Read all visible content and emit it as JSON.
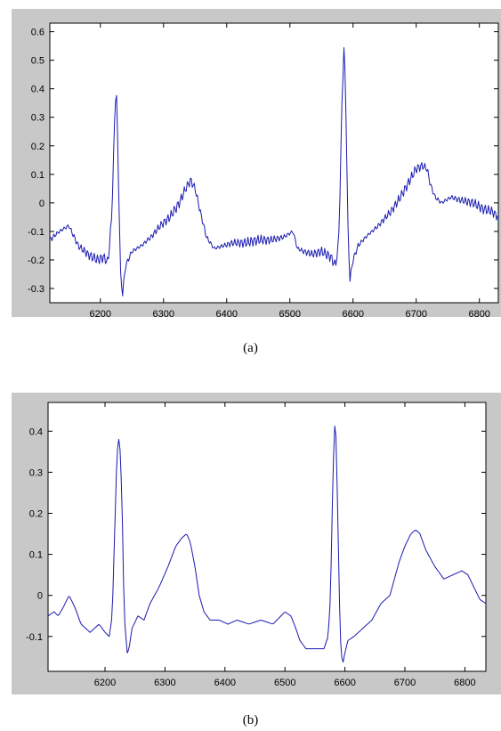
{
  "chart_data": [
    {
      "type": "line",
      "panel_caption": "(a)",
      "xlim": [
        6120,
        6830
      ],
      "ylim": [
        -0.35,
        0.63
      ],
      "x_ticks": [
        6200,
        6300,
        6400,
        6500,
        6600,
        6700,
        6800
      ],
      "y_ticks": [
        -0.3,
        -0.2,
        -0.1,
        0,
        0.1,
        0.2,
        0.3,
        0.4,
        0.5,
        0.6
      ],
      "y_tick_labels": [
        "-0.3",
        "-0.2",
        "-0.1",
        "0",
        "0.1",
        "0.2",
        "0.3",
        "0.4",
        "0.5",
        "0.6"
      ],
      "grid": false,
      "line_color": "#1a1ab0",
      "noise": 0.018,
      "series": [
        {
          "x": [
            6120,
            6135,
            6150,
            6165,
            6180,
            6195,
            6205,
            6212,
            6218,
            6222,
            6225,
            6228,
            6232,
            6235,
            6240,
            6250,
            6265,
            6280,
            6295,
            6310,
            6325,
            6335,
            6343,
            6350,
            6358,
            6368,
            6380,
            6395,
            6410,
            6430,
            6450,
            6470,
            6490,
            6505,
            6512,
            6522,
            6535,
            6550,
            6565,
            6572,
            6577,
            6580,
            6583,
            6586,
            6589,
            6592,
            6595,
            6600,
            6608,
            6620,
            6640,
            6660,
            6675,
            6690,
            6700,
            6710,
            6717,
            6723,
            6730,
            6740,
            6755,
            6770,
            6790,
            6805,
            6820,
            6830
          ],
          "y": [
            -0.13,
            -0.1,
            -0.08,
            -0.15,
            -0.18,
            -0.2,
            -0.19,
            -0.21,
            -0.05,
            0.25,
            0.43,
            0.15,
            -0.25,
            -0.32,
            -0.22,
            -0.17,
            -0.15,
            -0.12,
            -0.08,
            -0.05,
            0.0,
            0.05,
            0.08,
            0.05,
            -0.03,
            -0.12,
            -0.16,
            -0.15,
            -0.14,
            -0.14,
            -0.13,
            -0.13,
            -0.12,
            -0.1,
            -0.16,
            -0.17,
            -0.18,
            -0.17,
            -0.19,
            -0.22,
            -0.15,
            0.1,
            0.4,
            0.56,
            0.3,
            -0.1,
            -0.27,
            -0.2,
            -0.15,
            -0.12,
            -0.08,
            -0.03,
            0.02,
            0.08,
            0.12,
            0.13,
            0.12,
            0.06,
            0.02,
            0.0,
            0.02,
            0.01,
            0.0,
            -0.02,
            -0.03,
            -0.05
          ]
        }
      ]
    },
    {
      "type": "line",
      "panel_caption": "(b)",
      "xlim": [
        6105,
        6835
      ],
      "ylim": [
        -0.185,
        0.47
      ],
      "x_ticks": [
        6200,
        6300,
        6400,
        6500,
        6600,
        6700,
        6800
      ],
      "y_ticks": [
        -0.1,
        0,
        0.1,
        0.2,
        0.3,
        0.4
      ],
      "y_tick_labels": [
        "-0.1",
        "0",
        "0.1",
        "0.2",
        "0.3",
        "0.4"
      ],
      "grid": false,
      "line_color": "#1a1ab0",
      "noise": 0,
      "series": [
        {
          "x": [
            6105,
            6115,
            6122,
            6130,
            6140,
            6150,
            6160,
            6175,
            6190,
            6200,
            6207,
            6212,
            6216,
            6220,
            6224,
            6228,
            6232,
            6237,
            6240,
            6245,
            6255,
            6265,
            6275,
            6290,
            6305,
            6318,
            6328,
            6336,
            6342,
            6350,
            6357,
            6365,
            6375,
            6390,
            6405,
            6420,
            6440,
            6460,
            6480,
            6500,
            6510,
            6518,
            6525,
            6535,
            6550,
            6565,
            6572,
            6576,
            6580,
            6584,
            6588,
            6592,
            6596,
            6600,
            6605,
            6615,
            6630,
            6645,
            6660,
            6675,
            6690,
            6700,
            6710,
            6718,
            6725,
            6735,
            6750,
            6765,
            6780,
            6795,
            6805,
            6815,
            6825,
            6835
          ],
          "y": [
            -0.05,
            -0.04,
            -0.05,
            -0.03,
            0.0,
            -0.03,
            -0.07,
            -0.09,
            -0.07,
            -0.09,
            -0.1,
            -0.05,
            0.15,
            0.35,
            0.39,
            0.25,
            -0.05,
            -0.14,
            -0.13,
            -0.08,
            -0.05,
            -0.06,
            -0.02,
            0.02,
            0.07,
            0.12,
            0.14,
            0.15,
            0.13,
            0.07,
            0.0,
            -0.04,
            -0.06,
            -0.06,
            -0.07,
            -0.06,
            -0.07,
            -0.06,
            -0.07,
            -0.04,
            -0.05,
            -0.08,
            -0.11,
            -0.13,
            -0.13,
            -0.13,
            -0.1,
            0.0,
            0.3,
            0.45,
            0.2,
            -0.1,
            -0.17,
            -0.14,
            -0.11,
            -0.1,
            -0.08,
            -0.06,
            -0.02,
            0.0,
            0.08,
            0.12,
            0.15,
            0.16,
            0.15,
            0.11,
            0.07,
            0.04,
            0.05,
            0.06,
            0.05,
            0.02,
            -0.01,
            -0.02
          ]
        }
      ]
    }
  ]
}
